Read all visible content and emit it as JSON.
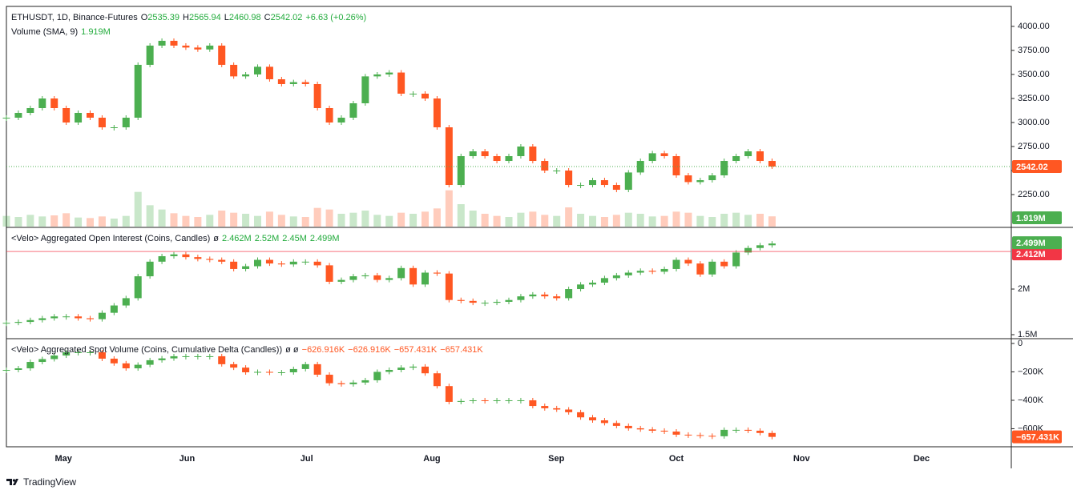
{
  "header": {
    "symbol": "ETHUSDT, 1D, Binance-Futures",
    "ohlc": [
      {
        "key": "O",
        "value": "2535.39"
      },
      {
        "key": "H",
        "value": "2565.94"
      },
      {
        "key": "L",
        "value": "2460.98"
      },
      {
        "key": "C",
        "value": "2542.02"
      }
    ],
    "change": "+6.63 (+0.26%)",
    "volume_title": "Volume (SMA, 9)",
    "volume_value": "1.919M"
  },
  "time_axis": {
    "xlim": [
      0,
      252
    ],
    "xticks": [
      {
        "value": 14.3,
        "label": "May"
      },
      {
        "value": 45.3,
        "label": "Jun"
      },
      {
        "value": 75.3,
        "label": "Jul"
      },
      {
        "value": 106.7,
        "label": "Aug"
      },
      {
        "value": 137.9,
        "label": "Sep"
      },
      {
        "value": 168,
        "label": "Oct"
      },
      {
        "value": 199.4,
        "label": "Nov"
      },
      {
        "value": 229.5,
        "label": "Dec"
      }
    ],
    "x": [
      0,
      3,
      6,
      9,
      12,
      15,
      18,
      21,
      24,
      27,
      30,
      33,
      36,
      39,
      42,
      45,
      48,
      51,
      54,
      57,
      60,
      63,
      66,
      69,
      72,
      75,
      78,
      81,
      84,
      87,
      90,
      93,
      96,
      99,
      102,
      105,
      108,
      111,
      114,
      117,
      120,
      123,
      126,
      129,
      132,
      135,
      138,
      141,
      144,
      147,
      150,
      153,
      156,
      159,
      162,
      165,
      168,
      171,
      174,
      177,
      180,
      183,
      186,
      189,
      192
    ]
  },
  "chart_data": [
    {
      "type": "candlestick",
      "up_color": "#4caf50",
      "down_color": "#ff5722",
      "values": [
        3050,
        3100,
        3150,
        3250,
        3150,
        3000,
        3100,
        3050,
        2950,
        2950,
        3050,
        3600,
        3800,
        3850,
        3800,
        3780,
        3760,
        3800,
        3600,
        3480,
        3500,
        3580,
        3450,
        3400,
        3420,
        3400,
        3150,
        3000,
        3050,
        3200,
        3480,
        3500,
        3520,
        3300,
        3300,
        3250,
        2950,
        2350,
        2650,
        2700,
        2650,
        2600,
        2650,
        2750,
        2600,
        2500,
        2500,
        2350,
        2350,
        2400,
        2350,
        2300,
        2480,
        2600,
        2680,
        2650,
        2450,
        2380,
        2400,
        2450,
        2600,
        2650,
        2700,
        2600,
        2542.02
      ],
      "ylim": [
        1917,
        4208
      ],
      "yticks": [
        {
          "value": 2250,
          "label": "2250.00"
        },
        {
          "value": 2500,
          "label": "2500.00"
        },
        {
          "value": 2750,
          "label": "2750.00"
        },
        {
          "value": 3000,
          "label": "3000.00"
        },
        {
          "value": 3250,
          "label": "3250.00"
        },
        {
          "value": 3500,
          "label": "3500.00"
        },
        {
          "value": 3750,
          "label": "3750.00"
        },
        {
          "value": 4000,
          "label": "4000.00"
        }
      ],
      "volume": {
        "values": [
          2.0,
          1.8,
          2.2,
          1.9,
          2.1,
          2.5,
          1.7,
          1.6,
          1.9,
          1.5,
          2.0,
          6.5,
          4.0,
          3.2,
          2.5,
          2.0,
          1.8,
          2.2,
          3.0,
          2.6,
          2.4,
          2.0,
          2.8,
          2.2,
          1.9,
          1.8,
          3.5,
          3.2,
          2.4,
          2.6,
          3.0,
          2.2,
          2.0,
          2.6,
          2.4,
          2.8,
          3.4,
          6.8,
          4.2,
          3.0,
          2.4,
          2.0,
          1.8,
          2.6,
          2.8,
          2.2,
          2.0,
          3.6,
          2.4,
          2.0,
          1.8,
          2.2,
          2.6,
          2.4,
          1.9,
          2.0,
          2.8,
          2.6,
          2.0,
          1.8,
          2.4,
          2.6,
          2.2,
          2.4,
          1.919
        ],
        "ylim": [
          0,
          9
        ],
        "last_label": "1.919M"
      }
    },
    {
      "type": "candlestick",
      "up_color": "#4caf50",
      "down_color": "#ff5722",
      "legend": {
        "title": "<Velo> Aggregated Open Interest (Coins, Candles)",
        "symbol": "ø",
        "values": [
          "2.462M",
          "2.52M",
          "2.45M",
          "2.499M"
        ]
      },
      "values": [
        1.63,
        1.64,
        1.66,
        1.68,
        1.7,
        1.7,
        1.68,
        1.67,
        1.74,
        1.82,
        1.9,
        2.14,
        2.3,
        2.36,
        2.38,
        2.35,
        2.33,
        2.32,
        2.3,
        2.22,
        2.25,
        2.32,
        2.28,
        2.27,
        2.3,
        2.3,
        2.26,
        2.08,
        2.1,
        2.14,
        2.15,
        2.1,
        2.12,
        2.23,
        2.05,
        2.18,
        2.17,
        1.88,
        1.87,
        1.85,
        1.85,
        1.86,
        1.88,
        1.92,
        1.94,
        1.92,
        1.9,
        2.0,
        2.05,
        2.07,
        2.12,
        2.15,
        2.18,
        2.2,
        2.19,
        2.22,
        2.32,
        2.28,
        2.16,
        2.3,
        2.25,
        2.4,
        2.45,
        2.48,
        2.499
      ],
      "last_label": "2.499M",
      "level": {
        "value": 2.412,
        "label": "2.412M",
        "color": "#f23645"
      },
      "ylim": [
        1.465,
        2.667
      ],
      "yticks": [
        {
          "value": 1.5,
          "label": "1.5M"
        },
        {
          "value": 2,
          "label": "2M"
        }
      ]
    },
    {
      "type": "candlestick",
      "up_color": "#4caf50",
      "down_color": "#ff5722",
      "legend": {
        "title": "<Velo> Aggregated Spot Volume (Coins, Cumulative Delta (Candles))",
        "symbol": "ø ø",
        "values": [
          "−626.916K",
          "−626.916K",
          "−657.431K",
          "−657.431K"
        ]
      },
      "values": [
        -186,
        -175,
        -130,
        -110,
        -85,
        -62,
        -62,
        -62,
        -107,
        -140,
        -175,
        -150,
        -118,
        -105,
        -90,
        -90,
        -90,
        -90,
        -146,
        -170,
        -203,
        -200,
        -203,
        -203,
        -180,
        -146,
        -220,
        -280,
        -287,
        -275,
        -259,
        -200,
        -186,
        -170,
        -163,
        -210,
        -300,
        -411,
        -405,
        -400,
        -405,
        -400,
        -400,
        -400,
        -440,
        -456,
        -465,
        -484,
        -520,
        -541,
        -560,
        -580,
        -597,
        -605,
        -614,
        -620,
        -642,
        -645,
        -650,
        -653,
        -608,
        -608,
        -614,
        -630,
        -657.431
      ],
      "last_label": "−657.431K",
      "ylim": [
        -727,
        28
      ],
      "yticks": [
        0,
        {
          "value": -200,
          "label": "−200K"
        },
        {
          "value": -400,
          "label": "−400K"
        },
        {
          "value": -600,
          "label": "−600K"
        }
      ]
    }
  ],
  "footer": "TradingView"
}
